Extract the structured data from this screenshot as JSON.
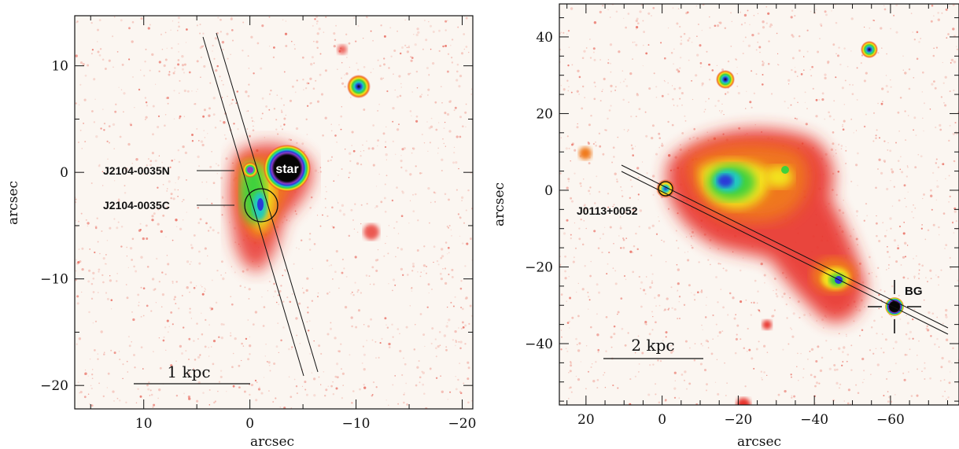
{
  "left_panel": {
    "x_axis_label": "arcsec",
    "y_axis_label": "arcsec",
    "x_ticks": [
      10,
      0,
      -10,
      -20
    ],
    "y_ticks": [
      10,
      0,
      -10,
      -20
    ],
    "x_range": [
      16.5,
      -21
    ],
    "y_range": [
      -22.2,
      14.7
    ],
    "labels": {
      "north": "J2104-0035N",
      "central": "J2104-0035C",
      "star": "star",
      "scale": "1  kpc"
    }
  },
  "right_panel": {
    "x_axis_label": "arcsec",
    "y_axis_label": "arcsec",
    "x_ticks": [
      20,
      0,
      -20,
      -40,
      -60
    ],
    "y_ticks": [
      40,
      20,
      0,
      -20,
      -40
    ],
    "x_range": [
      27,
      -78
    ],
    "y_range": [
      -56,
      48.6
    ],
    "labels": {
      "source": "J0113+0052",
      "background": "BG",
      "scale": "2  kpc"
    }
  },
  "colors": {
    "red": "#e8302a",
    "orange": "#f07a1a",
    "yellow": "#f3e21e",
    "green": "#3fd13c",
    "cyan": "#20c8c0",
    "blue": "#2a3ad8",
    "magenta": "#8a3cc8",
    "black": "#050505"
  }
}
